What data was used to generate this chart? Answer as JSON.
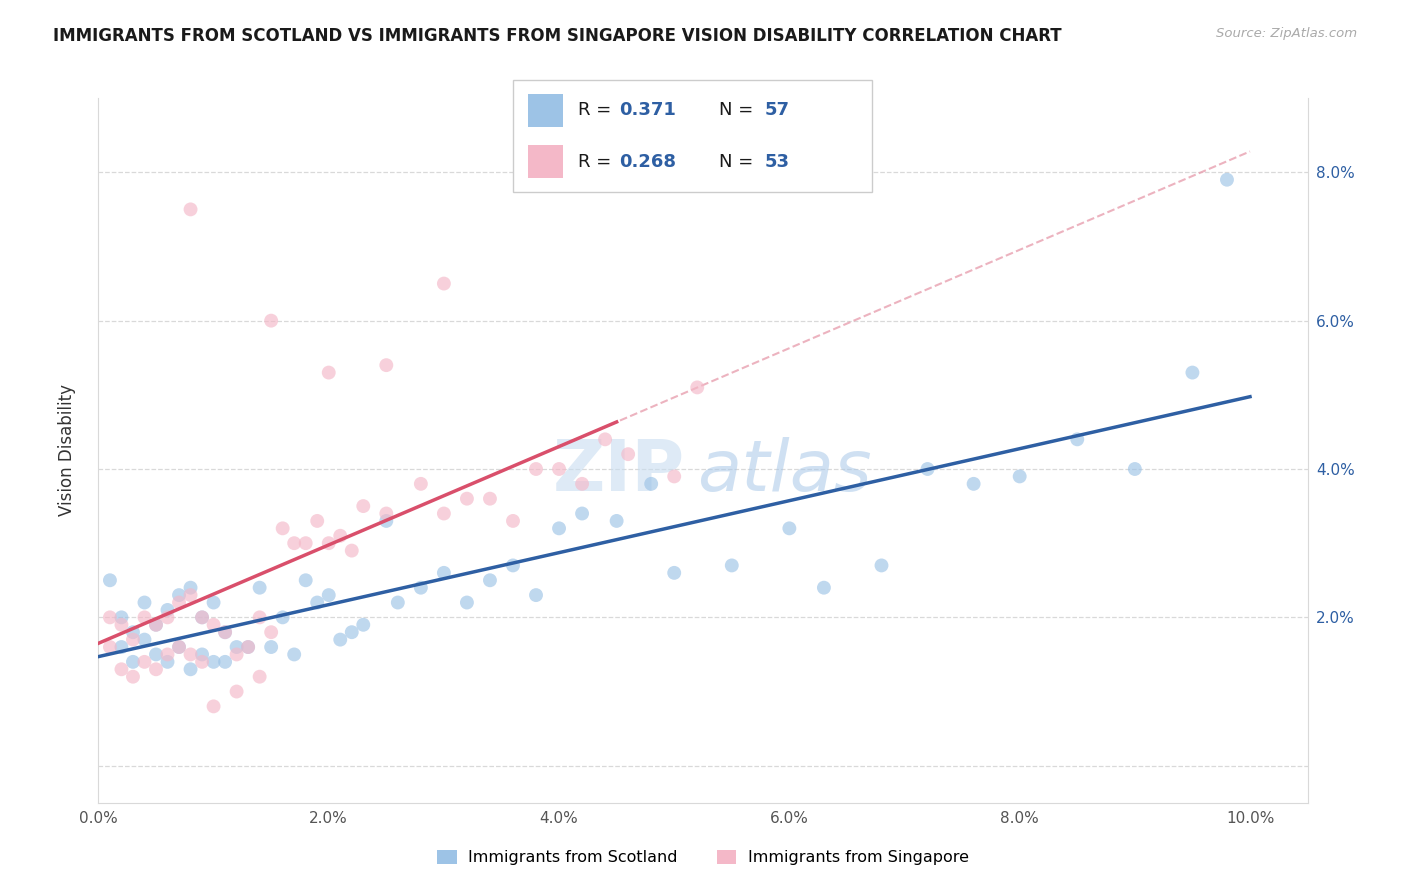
{
  "title": "IMMIGRANTS FROM SCOTLAND VS IMMIGRANTS FROM SINGAPORE VISION DISABILITY CORRELATION CHART",
  "source": "Source: ZipAtlas.com",
  "ylabel": "Vision Disability",
  "xlim": [
    0.0,
    0.105
  ],
  "ylim": [
    -0.005,
    0.09
  ],
  "xticks": [
    0.0,
    0.02,
    0.04,
    0.06,
    0.08,
    0.1
  ],
  "yticks": [
    0.0,
    0.02,
    0.04,
    0.06,
    0.08
  ],
  "xtick_labels": [
    "0.0%",
    "2.0%",
    "4.0%",
    "6.0%",
    "8.0%",
    "10.0%"
  ],
  "ytick_labels_right": [
    "",
    "2.0%",
    "4.0%",
    "6.0%",
    "8.0%"
  ],
  "scotland_color": "#9dc3e6",
  "singapore_color": "#f4b8c8",
  "scotland_line_color": "#2e5fa3",
  "singapore_line_color": "#d94f6b",
  "singapore_dash_color": "#e8a0b0",
  "r_scotland": 0.371,
  "n_scotland": 57,
  "r_singapore": 0.268,
  "n_singapore": 53,
  "legend_text_color": "#1a1a1a",
  "legend_val_color": "#2e5fa3",
  "background_color": "#ffffff",
  "grid_color": "#d9d9d9",
  "title_fontsize": 12,
  "axis_fontsize": 11,
  "marker_size": 100,
  "marker_alpha": 0.65,
  "scotland_x": [
    0.001,
    0.002,
    0.002,
    0.003,
    0.003,
    0.004,
    0.004,
    0.005,
    0.005,
    0.006,
    0.006,
    0.007,
    0.007,
    0.008,
    0.008,
    0.009,
    0.009,
    0.01,
    0.01,
    0.011,
    0.011,
    0.012,
    0.013,
    0.014,
    0.015,
    0.016,
    0.017,
    0.018,
    0.019,
    0.02,
    0.021,
    0.022,
    0.023,
    0.025,
    0.026,
    0.028,
    0.03,
    0.032,
    0.034,
    0.036,
    0.038,
    0.04,
    0.042,
    0.045,
    0.048,
    0.05,
    0.055,
    0.06,
    0.063,
    0.068,
    0.072,
    0.076,
    0.08,
    0.085,
    0.09,
    0.095,
    0.098
  ],
  "scotland_y": [
    0.025,
    0.02,
    0.016,
    0.018,
    0.014,
    0.022,
    0.017,
    0.019,
    0.015,
    0.021,
    0.014,
    0.023,
    0.016,
    0.024,
    0.013,
    0.02,
    0.015,
    0.022,
    0.014,
    0.018,
    0.014,
    0.016,
    0.016,
    0.024,
    0.016,
    0.02,
    0.015,
    0.025,
    0.022,
    0.023,
    0.017,
    0.018,
    0.019,
    0.033,
    0.022,
    0.024,
    0.026,
    0.022,
    0.025,
    0.027,
    0.023,
    0.032,
    0.034,
    0.033,
    0.038,
    0.026,
    0.027,
    0.032,
    0.024,
    0.027,
    0.04,
    0.038,
    0.039,
    0.044,
    0.04,
    0.053,
    0.079
  ],
  "singapore_x": [
    0.001,
    0.001,
    0.002,
    0.002,
    0.003,
    0.003,
    0.004,
    0.004,
    0.005,
    0.005,
    0.006,
    0.006,
    0.007,
    0.007,
    0.008,
    0.008,
    0.009,
    0.009,
    0.01,
    0.011,
    0.012,
    0.013,
    0.014,
    0.015,
    0.016,
    0.017,
    0.018,
    0.019,
    0.02,
    0.021,
    0.022,
    0.023,
    0.025,
    0.028,
    0.03,
    0.032,
    0.034,
    0.036,
    0.038,
    0.04,
    0.042,
    0.044,
    0.046,
    0.05,
    0.052,
    0.015,
    0.02,
    0.025,
    0.03,
    0.008,
    0.01,
    0.012,
    0.014
  ],
  "singapore_y": [
    0.02,
    0.016,
    0.019,
    0.013,
    0.017,
    0.012,
    0.02,
    0.014,
    0.019,
    0.013,
    0.02,
    0.015,
    0.022,
    0.016,
    0.023,
    0.015,
    0.02,
    0.014,
    0.019,
    0.018,
    0.015,
    0.016,
    0.02,
    0.018,
    0.032,
    0.03,
    0.03,
    0.033,
    0.03,
    0.031,
    0.029,
    0.035,
    0.034,
    0.038,
    0.034,
    0.036,
    0.036,
    0.033,
    0.04,
    0.04,
    0.038,
    0.044,
    0.042,
    0.039,
    0.051,
    0.06,
    0.053,
    0.054,
    0.065,
    0.075,
    0.008,
    0.01,
    0.012
  ],
  "watermark_zip_color": "#c8ddf0",
  "watermark_atlas_color": "#a8c8e8"
}
